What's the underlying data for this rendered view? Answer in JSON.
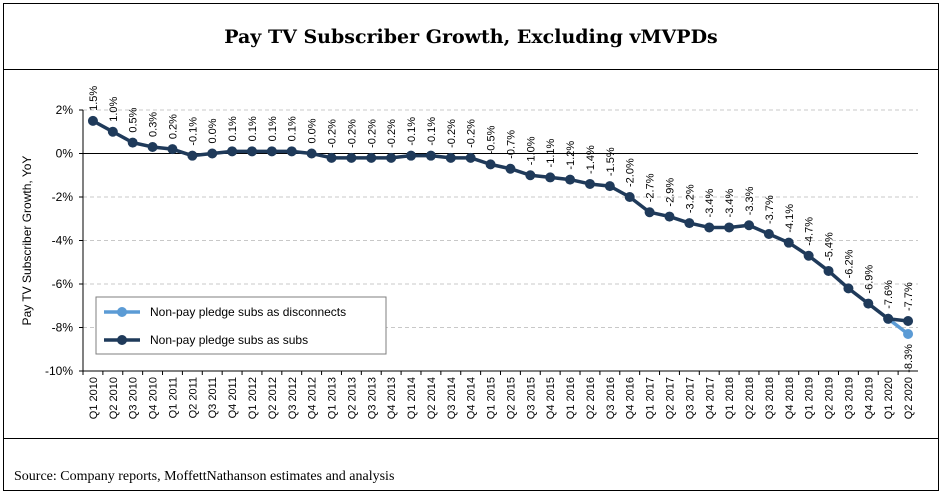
{
  "title": "Pay TV Subscriber Growth, Excluding vMVPDs",
  "source": "Source: Company reports, MoffettNathanson estimates and analysis",
  "chart_data": {
    "type": "line",
    "title": "Pay TV Subscriber Growth, Excluding vMVPDs",
    "xlabel": "",
    "ylabel": "Pay TV Subscriber Growth, YoY",
    "ylim": [
      -10,
      2
    ],
    "yticks": [
      "2%",
      "0%",
      "-2%",
      "-4%",
      "-6%",
      "-8%",
      "-10%"
    ],
    "grid": true,
    "legend_position": "bottom-left",
    "categories": [
      "Q1 2010",
      "Q2 2010",
      "Q3 2010",
      "Q4 2010",
      "Q1 2011",
      "Q2 2011",
      "Q3 2011",
      "Q4 2011",
      "Q1 2012",
      "Q2 2012",
      "Q3 2012",
      "Q4 2012",
      "Q1 2013",
      "Q2 2013",
      "Q3 2013",
      "Q4 2013",
      "Q1 2014",
      "Q2 2014",
      "Q3 2014",
      "Q4 2014",
      "Q1 2015",
      "Q2 2015",
      "Q3 2015",
      "Q4 2015",
      "Q1 2016",
      "Q2 2016",
      "Q3 2016",
      "Q4 2016",
      "Q1 2017",
      "Q2 2017",
      "Q3 2017",
      "Q4 2017",
      "Q1 2018",
      "Q2 2018",
      "Q3 2018",
      "Q4 2018",
      "Q1 2019",
      "Q2 2019",
      "Q3 2019",
      "Q4 2019",
      "Q1 2020",
      "Q2 2020"
    ],
    "series": [
      {
        "name": "Non-pay pledge subs as disconnects",
        "color": "#5b9bd5",
        "values": [
          null,
          null,
          null,
          null,
          null,
          null,
          null,
          null,
          null,
          null,
          null,
          null,
          null,
          null,
          null,
          null,
          null,
          null,
          null,
          null,
          null,
          null,
          null,
          null,
          null,
          null,
          null,
          null,
          null,
          null,
          null,
          null,
          null,
          null,
          null,
          null,
          null,
          null,
          null,
          null,
          -7.6,
          -8.3
        ],
        "labels": [
          "",
          "",
          "",
          "",
          "",
          "",
          "",
          "",
          "",
          "",
          "",
          "",
          "",
          "",
          "",
          "",
          "",
          "",
          "",
          "",
          "",
          "",
          "",
          "",
          "",
          "",
          "",
          "",
          "",
          "",
          "",
          "",
          "",
          "",
          "",
          "",
          "",
          "",
          "",
          "",
          "",
          "-8.3%"
        ]
      },
      {
        "name": "Non-pay pledge subs as subs",
        "color": "#1f3a5a",
        "values": [
          1.5,
          1.0,
          0.5,
          0.3,
          0.2,
          -0.1,
          0.0,
          0.1,
          0.1,
          0.1,
          0.1,
          0.0,
          -0.2,
          -0.2,
          -0.2,
          -0.2,
          -0.1,
          -0.1,
          -0.2,
          -0.2,
          -0.5,
          -0.7,
          -1.0,
          -1.1,
          -1.2,
          -1.4,
          -1.5,
          -2.0,
          -2.7,
          -2.9,
          -3.2,
          -3.4,
          -3.4,
          -3.3,
          -3.7,
          -4.1,
          -4.7,
          -5.4,
          -6.2,
          -6.9,
          -7.6,
          -7.7
        ],
        "labels": [
          "1.5%",
          "1.0%",
          "0.5%",
          "0.3%",
          "0.2%",
          "-0.1%",
          "0.0%",
          "0.1%",
          "0.1%",
          "0.1%",
          "0.1%",
          "0.0%",
          "-0.2%",
          "-0.2%",
          "-0.2%",
          "-0.2%",
          "-0.1%",
          "-0.1%",
          "-0.2%",
          "-0.2%",
          "-0.5%",
          "-0.7%",
          "-1.0%",
          "-1.1%",
          "-1.2%",
          "-1.4%",
          "-1.5%",
          "-2.0%",
          "-2.7%",
          "-2.9%",
          "-3.2%",
          "-3.4%",
          "-3.4%",
          "-3.3%",
          "-3.7%",
          "-4.1%",
          "-4.7%",
          "-5.4%",
          "-6.2%",
          "-6.9%",
          "-7.6%",
          "-7.7%"
        ]
      }
    ]
  }
}
